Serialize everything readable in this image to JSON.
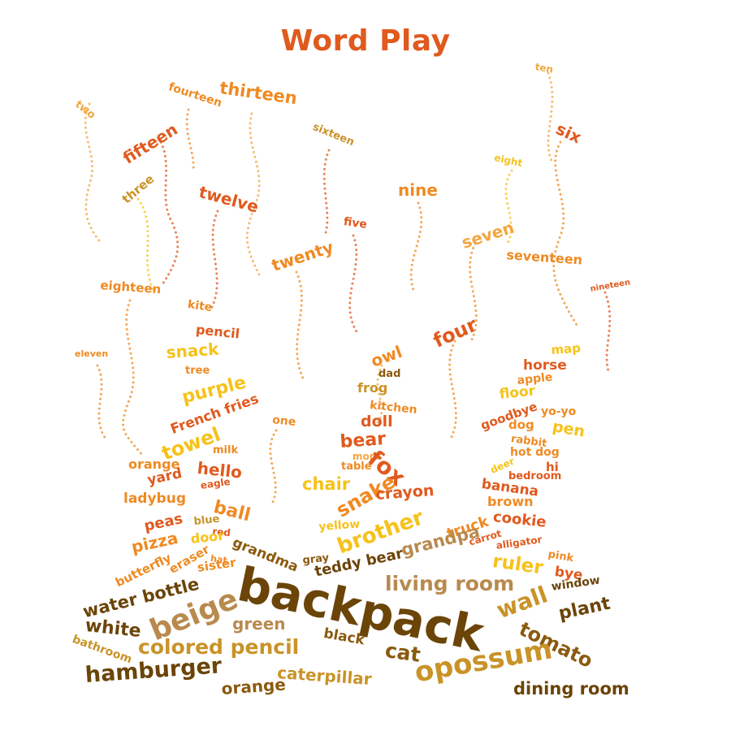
{
  "title": "Word Play",
  "palette": {
    "title": "#e05a1e",
    "orange_red": "#e05a1e",
    "orange": "#ef8a22",
    "light_orange": "#f2a640",
    "yellow": "#f6c21a",
    "tan": "#b88a4e",
    "gold": "#c99328",
    "brown": "#8a5a0e",
    "dark_brown": "#6b4408"
  },
  "words": [
    {
      "text": "two",
      "color": "light_orange"
    },
    {
      "text": "fourteen",
      "color": "orange"
    },
    {
      "text": "thirteen",
      "color": "orange"
    },
    {
      "text": "fifteen",
      "color": "orange_red"
    },
    {
      "text": "sixteen",
      "color": "gold"
    },
    {
      "text": "ten",
      "color": "light_orange"
    },
    {
      "text": "six",
      "color": "orange_red"
    },
    {
      "text": "three",
      "color": "gold"
    },
    {
      "text": "twelve",
      "color": "orange_red"
    },
    {
      "text": "eight",
      "color": "yellow"
    },
    {
      "text": "nine",
      "color": "orange"
    },
    {
      "text": "five",
      "color": "orange_red"
    },
    {
      "text": "seven",
      "color": "light_orange"
    },
    {
      "text": "twenty",
      "color": "orange"
    },
    {
      "text": "seventeen",
      "color": "orange"
    },
    {
      "text": "eighteen",
      "color": "orange"
    },
    {
      "text": "nineteen",
      "color": "orange_red"
    },
    {
      "text": "kite",
      "color": "orange"
    },
    {
      "text": "four",
      "color": "orange_red"
    },
    {
      "text": "pencil",
      "color": "orange_red"
    },
    {
      "text": "eleven",
      "color": "orange"
    },
    {
      "text": "snack",
      "color": "yellow"
    },
    {
      "text": "owl",
      "color": "orange"
    },
    {
      "text": "map",
      "color": "yellow"
    },
    {
      "text": "tree",
      "color": "orange"
    },
    {
      "text": "horse",
      "color": "orange_red"
    },
    {
      "text": "dad",
      "color": "brown"
    },
    {
      "text": "apple",
      "color": "orange"
    },
    {
      "text": "purple",
      "color": "yellow"
    },
    {
      "text": "frog",
      "color": "gold"
    },
    {
      "text": "floor",
      "color": "yellow"
    },
    {
      "text": "French fries",
      "color": "orange_red"
    },
    {
      "text": "kitchen",
      "color": "orange"
    },
    {
      "text": "goodbye",
      "color": "orange_red"
    },
    {
      "text": "yo-yo",
      "color": "orange"
    },
    {
      "text": "one",
      "color": "orange"
    },
    {
      "text": "doll",
      "color": "orange_red"
    },
    {
      "text": "dog",
      "color": "orange"
    },
    {
      "text": "pen",
      "color": "yellow"
    },
    {
      "text": "towel",
      "color": "yellow"
    },
    {
      "text": "rabbit",
      "color": "orange"
    },
    {
      "text": "bear",
      "color": "orange_red"
    },
    {
      "text": "milk",
      "color": "orange"
    },
    {
      "text": "mom",
      "color": "light_orange"
    },
    {
      "text": "hot dog",
      "color": "orange"
    },
    {
      "text": "orange",
      "color": "orange"
    },
    {
      "text": "hello",
      "color": "orange_red"
    },
    {
      "text": "fox",
      "color": "orange_red"
    },
    {
      "text": "table",
      "color": "orange"
    },
    {
      "text": "deer",
      "color": "yellow"
    },
    {
      "text": "hi",
      "color": "orange_red"
    },
    {
      "text": "bedroom",
      "color": "orange_red"
    },
    {
      "text": "yard",
      "color": "orange_red"
    },
    {
      "text": "eagle",
      "color": "orange_red"
    },
    {
      "text": "chair",
      "color": "yellow"
    },
    {
      "text": "banana",
      "color": "orange_red"
    },
    {
      "text": "ladybug",
      "color": "orange"
    },
    {
      "text": "snake",
      "color": "orange"
    },
    {
      "text": "crayon",
      "color": "orange_red"
    },
    {
      "text": "ball",
      "color": "orange"
    },
    {
      "text": "brown",
      "color": "orange"
    },
    {
      "text": "blue",
      "color": "gold"
    },
    {
      "text": "cookie",
      "color": "orange_red"
    },
    {
      "text": "peas",
      "color": "orange_red"
    },
    {
      "text": "red",
      "color": "orange_red"
    },
    {
      "text": "yellow",
      "color": "yellow"
    },
    {
      "text": "truck",
      "color": "orange"
    },
    {
      "text": "brother",
      "color": "yellow"
    },
    {
      "text": "carrot",
      "color": "orange_red"
    },
    {
      "text": "alligator",
      "color": "orange_red"
    },
    {
      "text": "pizza",
      "color": "orange"
    },
    {
      "text": "door",
      "color": "yellow"
    },
    {
      "text": "grandma",
      "color": "brown"
    },
    {
      "text": "grandpa",
      "color": "tan"
    },
    {
      "text": "pink",
      "color": "orange"
    },
    {
      "text": "butterfly",
      "color": "orange"
    },
    {
      "text": "eraser",
      "color": "orange"
    },
    {
      "text": "hat",
      "color": "orange"
    },
    {
      "text": "sister",
      "color": "orange"
    },
    {
      "text": "gray",
      "color": "brown"
    },
    {
      "text": "teddy bear",
      "color": "dark_brown"
    },
    {
      "text": "ruler",
      "color": "yellow"
    },
    {
      "text": "bye",
      "color": "orange_red"
    },
    {
      "text": "water bottle",
      "color": "dark_brown"
    },
    {
      "text": "backpack",
      "color": "dark_brown"
    },
    {
      "text": "living room",
      "color": "tan"
    },
    {
      "text": "window",
      "color": "dark_brown"
    },
    {
      "text": "beige",
      "color": "tan"
    },
    {
      "text": "wall",
      "color": "gold"
    },
    {
      "text": "plant",
      "color": "dark_brown"
    },
    {
      "text": "white",
      "color": "dark_brown"
    },
    {
      "text": "green",
      "color": "tan"
    },
    {
      "text": "tomato",
      "color": "brown"
    },
    {
      "text": "black",
      "color": "brown"
    },
    {
      "text": "bathroom",
      "color": "gold"
    },
    {
      "text": "colored pencil",
      "color": "gold"
    },
    {
      "text": "cat",
      "color": "brown"
    },
    {
      "text": "caterpillar",
      "color": "gold"
    },
    {
      "text": "opossum",
      "color": "gold"
    },
    {
      "text": "hamburger",
      "color": "dark_brown"
    },
    {
      "text": "orange",
      "color": "brown"
    },
    {
      "text": "dining room",
      "color": "dark_brown"
    }
  ]
}
